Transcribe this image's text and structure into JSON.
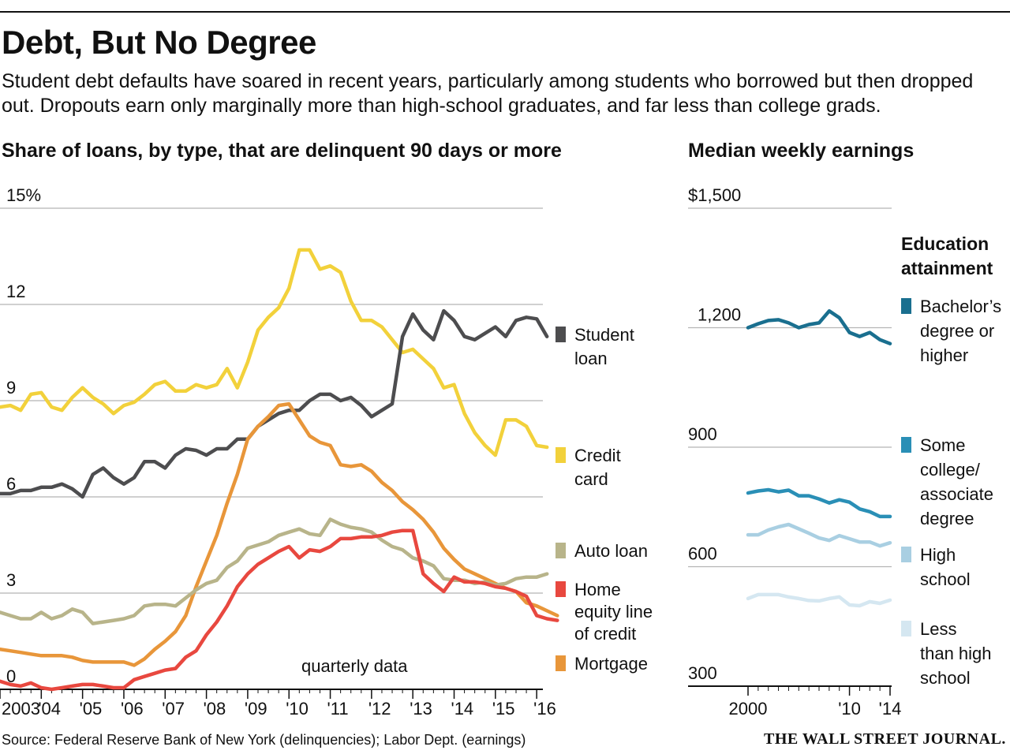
{
  "header": {
    "title": "Debt, But No Degree",
    "subtitle": "Student debt defaults have soared in recent years, particularly among students who borrowed but then dropped out. Dropouts earn only marginally more than high-school graduates, and far less than college grads."
  },
  "footer": {
    "source": "Source: Federal Reserve Bank of New York (delinquencies); Labor Dept. (earnings)",
    "masthead": "THE WALL STREET JOURNAL."
  },
  "chart_data": [
    {
      "type": "line",
      "title": "Share of loans, by type, that are delinquent 90 days or more",
      "annotation": "quarterly data",
      "ylim": [
        0,
        15
      ],
      "y_ticks": [
        0,
        3,
        6,
        9,
        12,
        15
      ],
      "y_tick_labels": [
        "0",
        "3",
        "6",
        "9",
        "12",
        "15%"
      ],
      "x_ticks": [
        2003,
        2004,
        2005,
        2006,
        2007,
        2008,
        2009,
        2010,
        2011,
        2012,
        2013,
        2014,
        2015,
        2016
      ],
      "x_tick_labels": [
        "2003",
        "'04",
        "'05",
        "'06",
        "'07",
        "'08",
        "'09",
        "'10",
        "'11",
        "'12",
        "'13",
        "'14",
        "'15",
        "'16"
      ],
      "xlim": [
        2003,
        2016.15
      ],
      "grid": true,
      "x_start": 2003.0,
      "x_step": 0.25,
      "series": [
        {
          "name": "Student loan",
          "color": "#4d4d4f",
          "values": [
            6.1,
            6.1,
            6.2,
            6.2,
            6.3,
            6.3,
            6.4,
            6.25,
            6.0,
            6.7,
            6.9,
            6.6,
            6.4,
            6.6,
            7.1,
            7.1,
            6.9,
            7.3,
            7.5,
            7.45,
            7.3,
            7.5,
            7.5,
            7.8,
            7.8,
            8.2,
            8.4,
            8.6,
            8.7,
            8.7,
            9.0,
            9.2,
            9.2,
            9.0,
            9.1,
            8.85,
            8.5,
            8.7,
            8.9,
            11.0,
            11.7,
            11.2,
            10.9,
            11.8,
            11.5,
            11.0,
            10.9,
            11.1,
            11.3,
            11.0,
            11.5,
            11.6,
            11.55,
            11.0
          ]
        },
        {
          "name": "Credit card",
          "color": "#f2d13b",
          "values": [
            8.8,
            8.85,
            8.7,
            9.2,
            9.25,
            8.8,
            8.7,
            9.1,
            9.4,
            9.1,
            8.9,
            8.6,
            8.85,
            8.95,
            9.2,
            9.5,
            9.6,
            9.3,
            9.3,
            9.5,
            9.4,
            9.5,
            10.0,
            9.4,
            10.2,
            11.2,
            11.6,
            11.9,
            12.5,
            13.7,
            13.7,
            13.1,
            13.2,
            13.0,
            12.1,
            11.5,
            11.5,
            11.3,
            10.9,
            10.5,
            10.6,
            10.3,
            10.0,
            9.4,
            9.5,
            8.6,
            8.0,
            7.6,
            7.3,
            8.4,
            8.4,
            8.2,
            7.6,
            7.55
          ]
        },
        {
          "name": "Auto loan",
          "color": "#b8b48a",
          "values": [
            2.4,
            2.3,
            2.2,
            2.2,
            2.4,
            2.2,
            2.3,
            2.5,
            2.4,
            2.05,
            2.1,
            2.15,
            2.2,
            2.3,
            2.6,
            2.65,
            2.65,
            2.6,
            2.85,
            3.1,
            3.3,
            3.4,
            3.8,
            4.0,
            4.4,
            4.5,
            4.6,
            4.8,
            4.9,
            5.0,
            4.85,
            4.8,
            5.3,
            5.15,
            5.05,
            5.0,
            4.9,
            4.65,
            4.45,
            4.35,
            4.1,
            4.0,
            3.85,
            3.45,
            3.4,
            3.4,
            3.3,
            3.35,
            3.25,
            3.3,
            3.45,
            3.5,
            3.5,
            3.6
          ]
        },
        {
          "name": "Home equity line of credit",
          "color": "#e8483f",
          "values": [
            0.25,
            0.15,
            0.1,
            0.2,
            0.05,
            0.0,
            0.05,
            0.1,
            0.15,
            0.15,
            0.1,
            0.05,
            0.05,
            0.3,
            0.4,
            0.5,
            0.6,
            0.65,
            1.0,
            1.2,
            1.7,
            2.1,
            2.6,
            3.2,
            3.6,
            3.9,
            4.1,
            4.3,
            4.45,
            4.1,
            4.35,
            4.3,
            4.45,
            4.7,
            4.7,
            4.75,
            4.75,
            4.8,
            4.9,
            4.95,
            4.95,
            3.6,
            3.3,
            3.05,
            3.5,
            3.35,
            3.35,
            3.3,
            3.2,
            3.15,
            3.05,
            2.9,
            2.3,
            2.2,
            2.15
          ]
        },
        {
          "name": "Mortgage",
          "color": "#e8963a",
          "values": [
            1.25,
            1.2,
            1.15,
            1.1,
            1.05,
            1.05,
            1.05,
            1.0,
            0.9,
            0.85,
            0.85,
            0.85,
            0.85,
            0.75,
            0.95,
            1.25,
            1.5,
            1.8,
            2.3,
            3.2,
            4.0,
            4.8,
            5.8,
            6.7,
            7.8,
            8.2,
            8.5,
            8.85,
            8.9,
            8.4,
            7.9,
            7.7,
            7.6,
            7.0,
            6.95,
            7.0,
            6.8,
            6.45,
            6.2,
            5.85,
            5.6,
            5.3,
            4.9,
            4.4,
            4.05,
            3.75,
            3.6,
            3.45,
            3.3,
            3.15,
            3.05,
            2.7,
            2.6,
            2.45,
            2.3
          ]
        }
      ],
      "legend": [
        {
          "series": "Student loan",
          "lines": [
            "Student",
            "loan"
          ]
        },
        {
          "series": "Credit card",
          "lines": [
            "Credit",
            "card"
          ]
        },
        {
          "series": "Auto loan",
          "lines": [
            "Auto loan"
          ]
        },
        {
          "series": "Home equity line of credit",
          "lines": [
            "Home",
            "equity line",
            "of credit"
          ]
        },
        {
          "series": "Mortgage",
          "lines": [
            "Mortgage"
          ]
        }
      ]
    },
    {
      "type": "line",
      "title": "Median weekly earnings",
      "legend_title": "Education attainment",
      "ylim": [
        300,
        1500
      ],
      "y_ticks": [
        300,
        600,
        900,
        1200,
        1500
      ],
      "y_tick_labels": [
        "300",
        "600",
        "900",
        "1,200",
        "$1,500"
      ],
      "x_ticks": [
        2000,
        2010,
        2014
      ],
      "x_tick_labels": [
        "2000",
        "'10",
        "'14"
      ],
      "xlim": [
        1999.7,
        2014.2
      ],
      "grid": true,
      "x": [
        2000,
        2001,
        2002,
        2003,
        2004,
        2005,
        2006,
        2007,
        2008,
        2009,
        2010,
        2011,
        2012,
        2013,
        2014
      ],
      "series": [
        {
          "name": "Bachelor's degree or higher",
          "color": "#1a6f8f",
          "values": [
            1200,
            1210,
            1218,
            1220,
            1212,
            1200,
            1208,
            1212,
            1242,
            1225,
            1188,
            1178,
            1188,
            1170,
            1160
          ]
        },
        {
          "name": "Some college/ associate degree",
          "color": "#2a8fb6",
          "values": [
            785,
            790,
            793,
            788,
            792,
            778,
            778,
            770,
            760,
            768,
            762,
            745,
            738,
            726,
            726
          ]
        },
        {
          "name": "High school",
          "color": "#a9cfe2",
          "values": [
            680,
            680,
            692,
            700,
            706,
            695,
            684,
            672,
            666,
            678,
            670,
            662,
            662,
            652,
            660
          ]
        },
        {
          "name": "Less than high school",
          "color": "#d5e7f1",
          "values": [
            520,
            530,
            530,
            530,
            524,
            520,
            515,
            514,
            520,
            524,
            504,
            502,
            512,
            508,
            516
          ]
        }
      ],
      "legend": [
        {
          "series": "Bachelor's degree or higher",
          "lines": [
            "Bachelor’s",
            "degree or",
            "higher"
          ]
        },
        {
          "series": "Some college/ associate degree",
          "lines": [
            "Some",
            "college/",
            "associate",
            "degree"
          ]
        },
        {
          "series": "High school",
          "lines": [
            "High",
            "school"
          ]
        },
        {
          "series": "Less than high school",
          "lines": [
            "Less",
            "than high",
            "school"
          ]
        }
      ]
    }
  ]
}
